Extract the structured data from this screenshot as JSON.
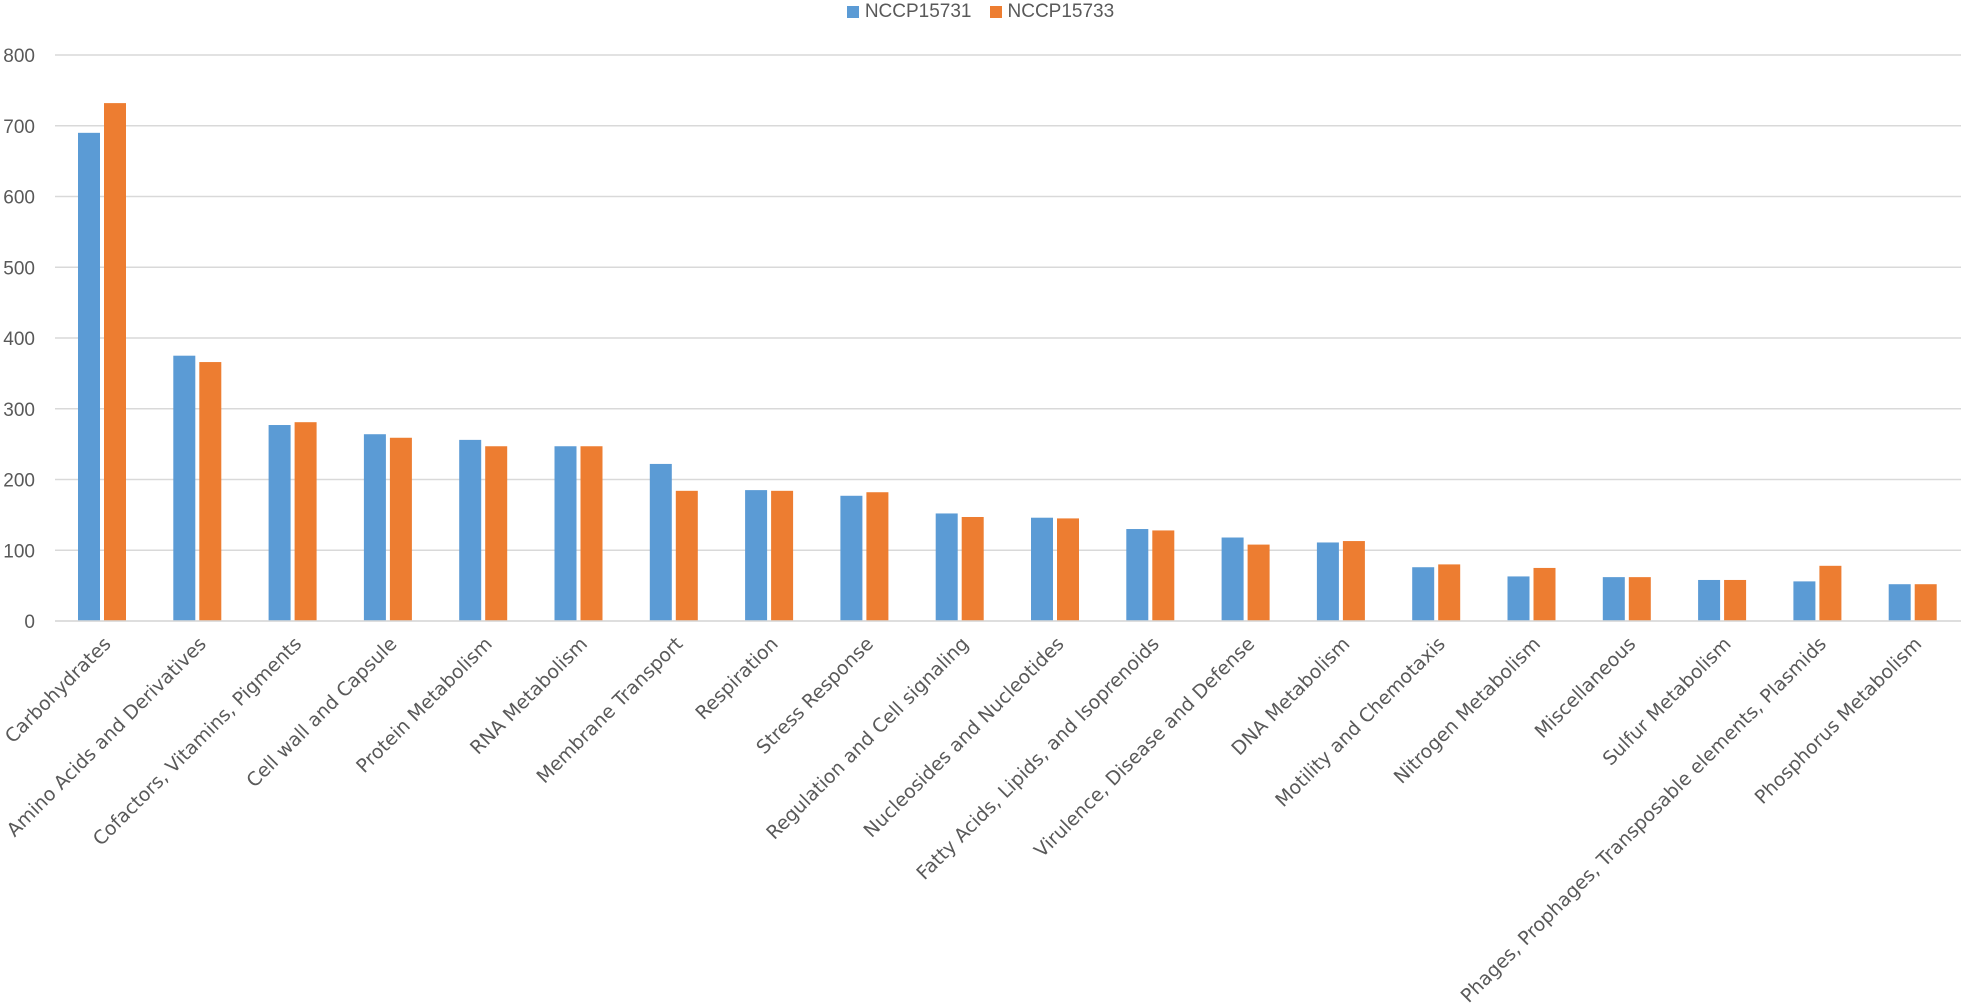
{
  "chart_data": {
    "type": "bar",
    "title": "",
    "xlabel": "",
    "ylabel": "",
    "ylim": [
      0,
      800
    ],
    "yticks": [
      0,
      100,
      200,
      300,
      400,
      500,
      600,
      700,
      800
    ],
    "grid": true,
    "legend_position": "top-center",
    "categories": [
      "Carbohydrates",
      "Amino Acids and Derivatives",
      "Cofactors, Vitamins, Pigments",
      "Cell wall and Capsule",
      "Protein Metabolism",
      "RNA Metabolism",
      "Membrane Transport",
      "Respiration",
      "Stress Response",
      "Regulation and Cell signaling",
      "Nucleosides and Nucleotides",
      "Fatty Acids, Lipids, and Isoprenoids",
      "Virulence, Disease and Defense",
      "DNA Metabolism",
      "Motility and Chemotaxis",
      "Nitrogen Metabolism",
      "Miscellaneous",
      "Sulfur Metabolism",
      "Phages, Prophages, Transposable elements, Plasmids",
      "Phosphorus Metabolism"
    ],
    "series": [
      {
        "name": "NCCP15731",
        "color": "#5B9BD5",
        "values": [
          690,
          375,
          277,
          264,
          256,
          247,
          222,
          185,
          177,
          152,
          146,
          130,
          118,
          111,
          76,
          63,
          62,
          58,
          56,
          52
        ]
      },
      {
        "name": "NCCP15733",
        "color": "#ED7D31",
        "values": [
          732,
          366,
          281,
          259,
          247,
          247,
          184,
          184,
          182,
          147,
          145,
          128,
          108,
          113,
          80,
          75,
          62,
          58,
          78,
          52
        ]
      }
    ]
  }
}
